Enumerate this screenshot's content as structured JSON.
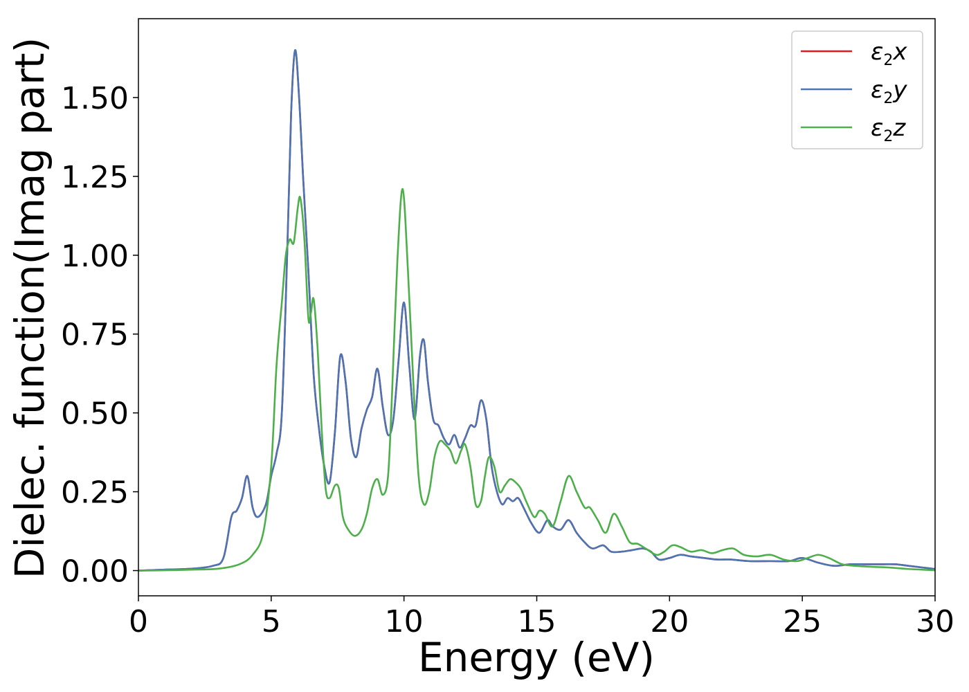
{
  "chart_data": {
    "type": "line",
    "title": "",
    "xlabel": "Energy (eV)",
    "ylabel": "Dielec. function(Imag part)",
    "xlim": [
      0,
      30
    ],
    "ylim": [
      -0.08,
      1.75
    ],
    "xticks": [
      0,
      5,
      10,
      15,
      20,
      25,
      30
    ],
    "yticks": [
      0.0,
      0.25,
      0.5,
      0.75,
      1.0,
      1.25,
      1.5
    ],
    "xtick_labels": [
      "0",
      "5",
      "10",
      "15",
      "20",
      "25",
      "30"
    ],
    "ytick_labels": [
      "0.00",
      "0.25",
      "0.50",
      "0.75",
      "1.00",
      "1.25",
      "1.50"
    ],
    "grid": false,
    "legend_position": "top-right",
    "series": [
      {
        "name": "ε2x",
        "legend_main": "ε",
        "legend_sub": "2",
        "legend_tail": "x",
        "color": "#e41a1c",
        "x": [
          0,
          1,
          2,
          2.8,
          3.2,
          3.5,
          3.7,
          3.9,
          4.1,
          4.3,
          4.5,
          4.8,
          5.0,
          5.2,
          5.4,
          5.6,
          5.75,
          5.9,
          6.05,
          6.2,
          6.4,
          6.6,
          6.8,
          7.0,
          7.2,
          7.4,
          7.6,
          7.8,
          8.0,
          8.2,
          8.4,
          8.6,
          8.8,
          9.0,
          9.2,
          9.4,
          9.6,
          9.8,
          10.0,
          10.2,
          10.4,
          10.6,
          10.75,
          10.9,
          11.1,
          11.3,
          11.5,
          11.7,
          11.9,
          12.1,
          12.3,
          12.5,
          12.7,
          12.9,
          13.1,
          13.3,
          13.5,
          13.7,
          13.9,
          14.1,
          14.3,
          14.5,
          14.8,
          15.1,
          15.4,
          15.6,
          15.9,
          16.2,
          16.5,
          16.8,
          17.1,
          17.5,
          17.8,
          18.2,
          18.6,
          19.0,
          19.3,
          19.6,
          20.0,
          20.4,
          20.8,
          21.3,
          21.8,
          22.3,
          23.0,
          23.8,
          24.5,
          25.0,
          25.6,
          26.2,
          26.8,
          27.4,
          28.0,
          28.5,
          29.0,
          29.5,
          30.0
        ],
        "values": [
          0.0,
          0.003,
          0.006,
          0.015,
          0.04,
          0.17,
          0.19,
          0.23,
          0.3,
          0.2,
          0.17,
          0.21,
          0.3,
          0.37,
          0.5,
          1.0,
          1.45,
          1.65,
          1.5,
          1.25,
          0.95,
          0.62,
          0.45,
          0.33,
          0.28,
          0.44,
          0.68,
          0.6,
          0.42,
          0.36,
          0.45,
          0.51,
          0.55,
          0.64,
          0.52,
          0.43,
          0.48,
          0.67,
          0.85,
          0.65,
          0.48,
          0.68,
          0.73,
          0.6,
          0.48,
          0.46,
          0.42,
          0.4,
          0.43,
          0.39,
          0.42,
          0.46,
          0.46,
          0.54,
          0.48,
          0.33,
          0.25,
          0.21,
          0.23,
          0.22,
          0.23,
          0.2,
          0.15,
          0.12,
          0.16,
          0.14,
          0.13,
          0.16,
          0.12,
          0.09,
          0.07,
          0.08,
          0.06,
          0.06,
          0.065,
          0.07,
          0.06,
          0.035,
          0.04,
          0.05,
          0.045,
          0.04,
          0.035,
          0.035,
          0.03,
          0.03,
          0.03,
          0.04,
          0.025,
          0.015,
          0.02,
          0.02,
          0.02,
          0.02,
          0.015,
          0.01,
          0.005
        ]
      },
      {
        "name": "ε2y",
        "legend_main": "ε",
        "legend_sub": "2",
        "legend_tail": "y",
        "color": "#4a74b4",
        "x": [
          0,
          1,
          2,
          2.8,
          3.2,
          3.5,
          3.7,
          3.9,
          4.1,
          4.3,
          4.5,
          4.8,
          5.0,
          5.2,
          5.4,
          5.6,
          5.75,
          5.9,
          6.05,
          6.2,
          6.4,
          6.6,
          6.8,
          7.0,
          7.2,
          7.4,
          7.6,
          7.8,
          8.0,
          8.2,
          8.4,
          8.6,
          8.8,
          9.0,
          9.2,
          9.4,
          9.6,
          9.8,
          10.0,
          10.2,
          10.4,
          10.6,
          10.75,
          10.9,
          11.1,
          11.3,
          11.5,
          11.7,
          11.9,
          12.1,
          12.3,
          12.5,
          12.7,
          12.9,
          13.1,
          13.3,
          13.5,
          13.7,
          13.9,
          14.1,
          14.3,
          14.5,
          14.8,
          15.1,
          15.4,
          15.6,
          15.9,
          16.2,
          16.5,
          16.8,
          17.1,
          17.5,
          17.8,
          18.2,
          18.6,
          19.0,
          19.3,
          19.6,
          20.0,
          20.4,
          20.8,
          21.3,
          21.8,
          22.3,
          23.0,
          23.8,
          24.5,
          25.0,
          25.6,
          26.2,
          26.8,
          27.4,
          28.0,
          28.5,
          29.0,
          29.5,
          30.0
        ],
        "values": [
          0.0,
          0.003,
          0.006,
          0.015,
          0.04,
          0.17,
          0.19,
          0.23,
          0.3,
          0.2,
          0.17,
          0.21,
          0.3,
          0.37,
          0.5,
          1.0,
          1.45,
          1.65,
          1.5,
          1.25,
          0.95,
          0.62,
          0.45,
          0.33,
          0.28,
          0.44,
          0.68,
          0.6,
          0.42,
          0.36,
          0.45,
          0.51,
          0.55,
          0.64,
          0.52,
          0.43,
          0.48,
          0.67,
          0.85,
          0.65,
          0.48,
          0.68,
          0.73,
          0.6,
          0.48,
          0.46,
          0.42,
          0.4,
          0.43,
          0.39,
          0.42,
          0.46,
          0.46,
          0.54,
          0.48,
          0.33,
          0.25,
          0.21,
          0.23,
          0.22,
          0.23,
          0.2,
          0.15,
          0.12,
          0.16,
          0.14,
          0.13,
          0.16,
          0.12,
          0.09,
          0.07,
          0.08,
          0.06,
          0.06,
          0.065,
          0.07,
          0.06,
          0.035,
          0.04,
          0.05,
          0.045,
          0.04,
          0.035,
          0.035,
          0.03,
          0.03,
          0.03,
          0.04,
          0.025,
          0.015,
          0.02,
          0.02,
          0.02,
          0.02,
          0.015,
          0.01,
          0.005
        ]
      },
      {
        "name": "ε2z",
        "legend_main": "ε",
        "legend_sub": "2",
        "legend_tail": "z",
        "color": "#4daf4a",
        "x": [
          0,
          1,
          2,
          3,
          3.8,
          4.3,
          4.7,
          5.0,
          5.2,
          5.4,
          5.55,
          5.7,
          5.85,
          6.0,
          6.1,
          6.25,
          6.4,
          6.5,
          6.6,
          6.75,
          6.9,
          7.05,
          7.2,
          7.4,
          7.55,
          7.7,
          7.9,
          8.15,
          8.4,
          8.6,
          8.8,
          9.0,
          9.2,
          9.4,
          9.55,
          9.75,
          9.95,
          10.15,
          10.35,
          10.55,
          10.75,
          10.95,
          11.15,
          11.35,
          11.55,
          11.75,
          11.95,
          12.15,
          12.3,
          12.5,
          12.7,
          12.9,
          13.05,
          13.2,
          13.4,
          13.6,
          13.8,
          14.0,
          14.2,
          14.4,
          14.6,
          14.9,
          15.1,
          15.3,
          15.6,
          15.9,
          16.2,
          16.5,
          16.8,
          17.0,
          17.3,
          17.6,
          17.9,
          18.2,
          18.5,
          18.8,
          19.1,
          19.5,
          19.8,
          20.1,
          20.4,
          20.8,
          21.2,
          21.6,
          22.0,
          22.4,
          22.8,
          23.3,
          23.8,
          24.3,
          24.8,
          25.2,
          25.6,
          26.0,
          26.5,
          27.0,
          27.6,
          28.2,
          29.0,
          30.0
        ],
        "values": [
          0.0,
          0.001,
          0.003,
          0.006,
          0.02,
          0.05,
          0.12,
          0.33,
          0.65,
          0.85,
          1.0,
          1.05,
          1.04,
          1.15,
          1.18,
          1.05,
          0.8,
          0.82,
          0.86,
          0.7,
          0.45,
          0.26,
          0.23,
          0.27,
          0.26,
          0.17,
          0.13,
          0.11,
          0.13,
          0.18,
          0.26,
          0.29,
          0.24,
          0.3,
          0.56,
          0.98,
          1.21,
          0.95,
          0.6,
          0.3,
          0.21,
          0.25,
          0.36,
          0.41,
          0.4,
          0.38,
          0.34,
          0.38,
          0.4,
          0.33,
          0.21,
          0.22,
          0.3,
          0.36,
          0.33,
          0.25,
          0.27,
          0.29,
          0.28,
          0.26,
          0.22,
          0.17,
          0.19,
          0.18,
          0.14,
          0.22,
          0.3,
          0.25,
          0.2,
          0.2,
          0.16,
          0.12,
          0.18,
          0.14,
          0.09,
          0.085,
          0.07,
          0.05,
          0.06,
          0.08,
          0.075,
          0.06,
          0.065,
          0.055,
          0.065,
          0.07,
          0.05,
          0.045,
          0.05,
          0.035,
          0.03,
          0.04,
          0.05,
          0.04,
          0.02,
          0.015,
          0.012,
          0.01,
          0.005,
          0.001
        ]
      }
    ]
  }
}
